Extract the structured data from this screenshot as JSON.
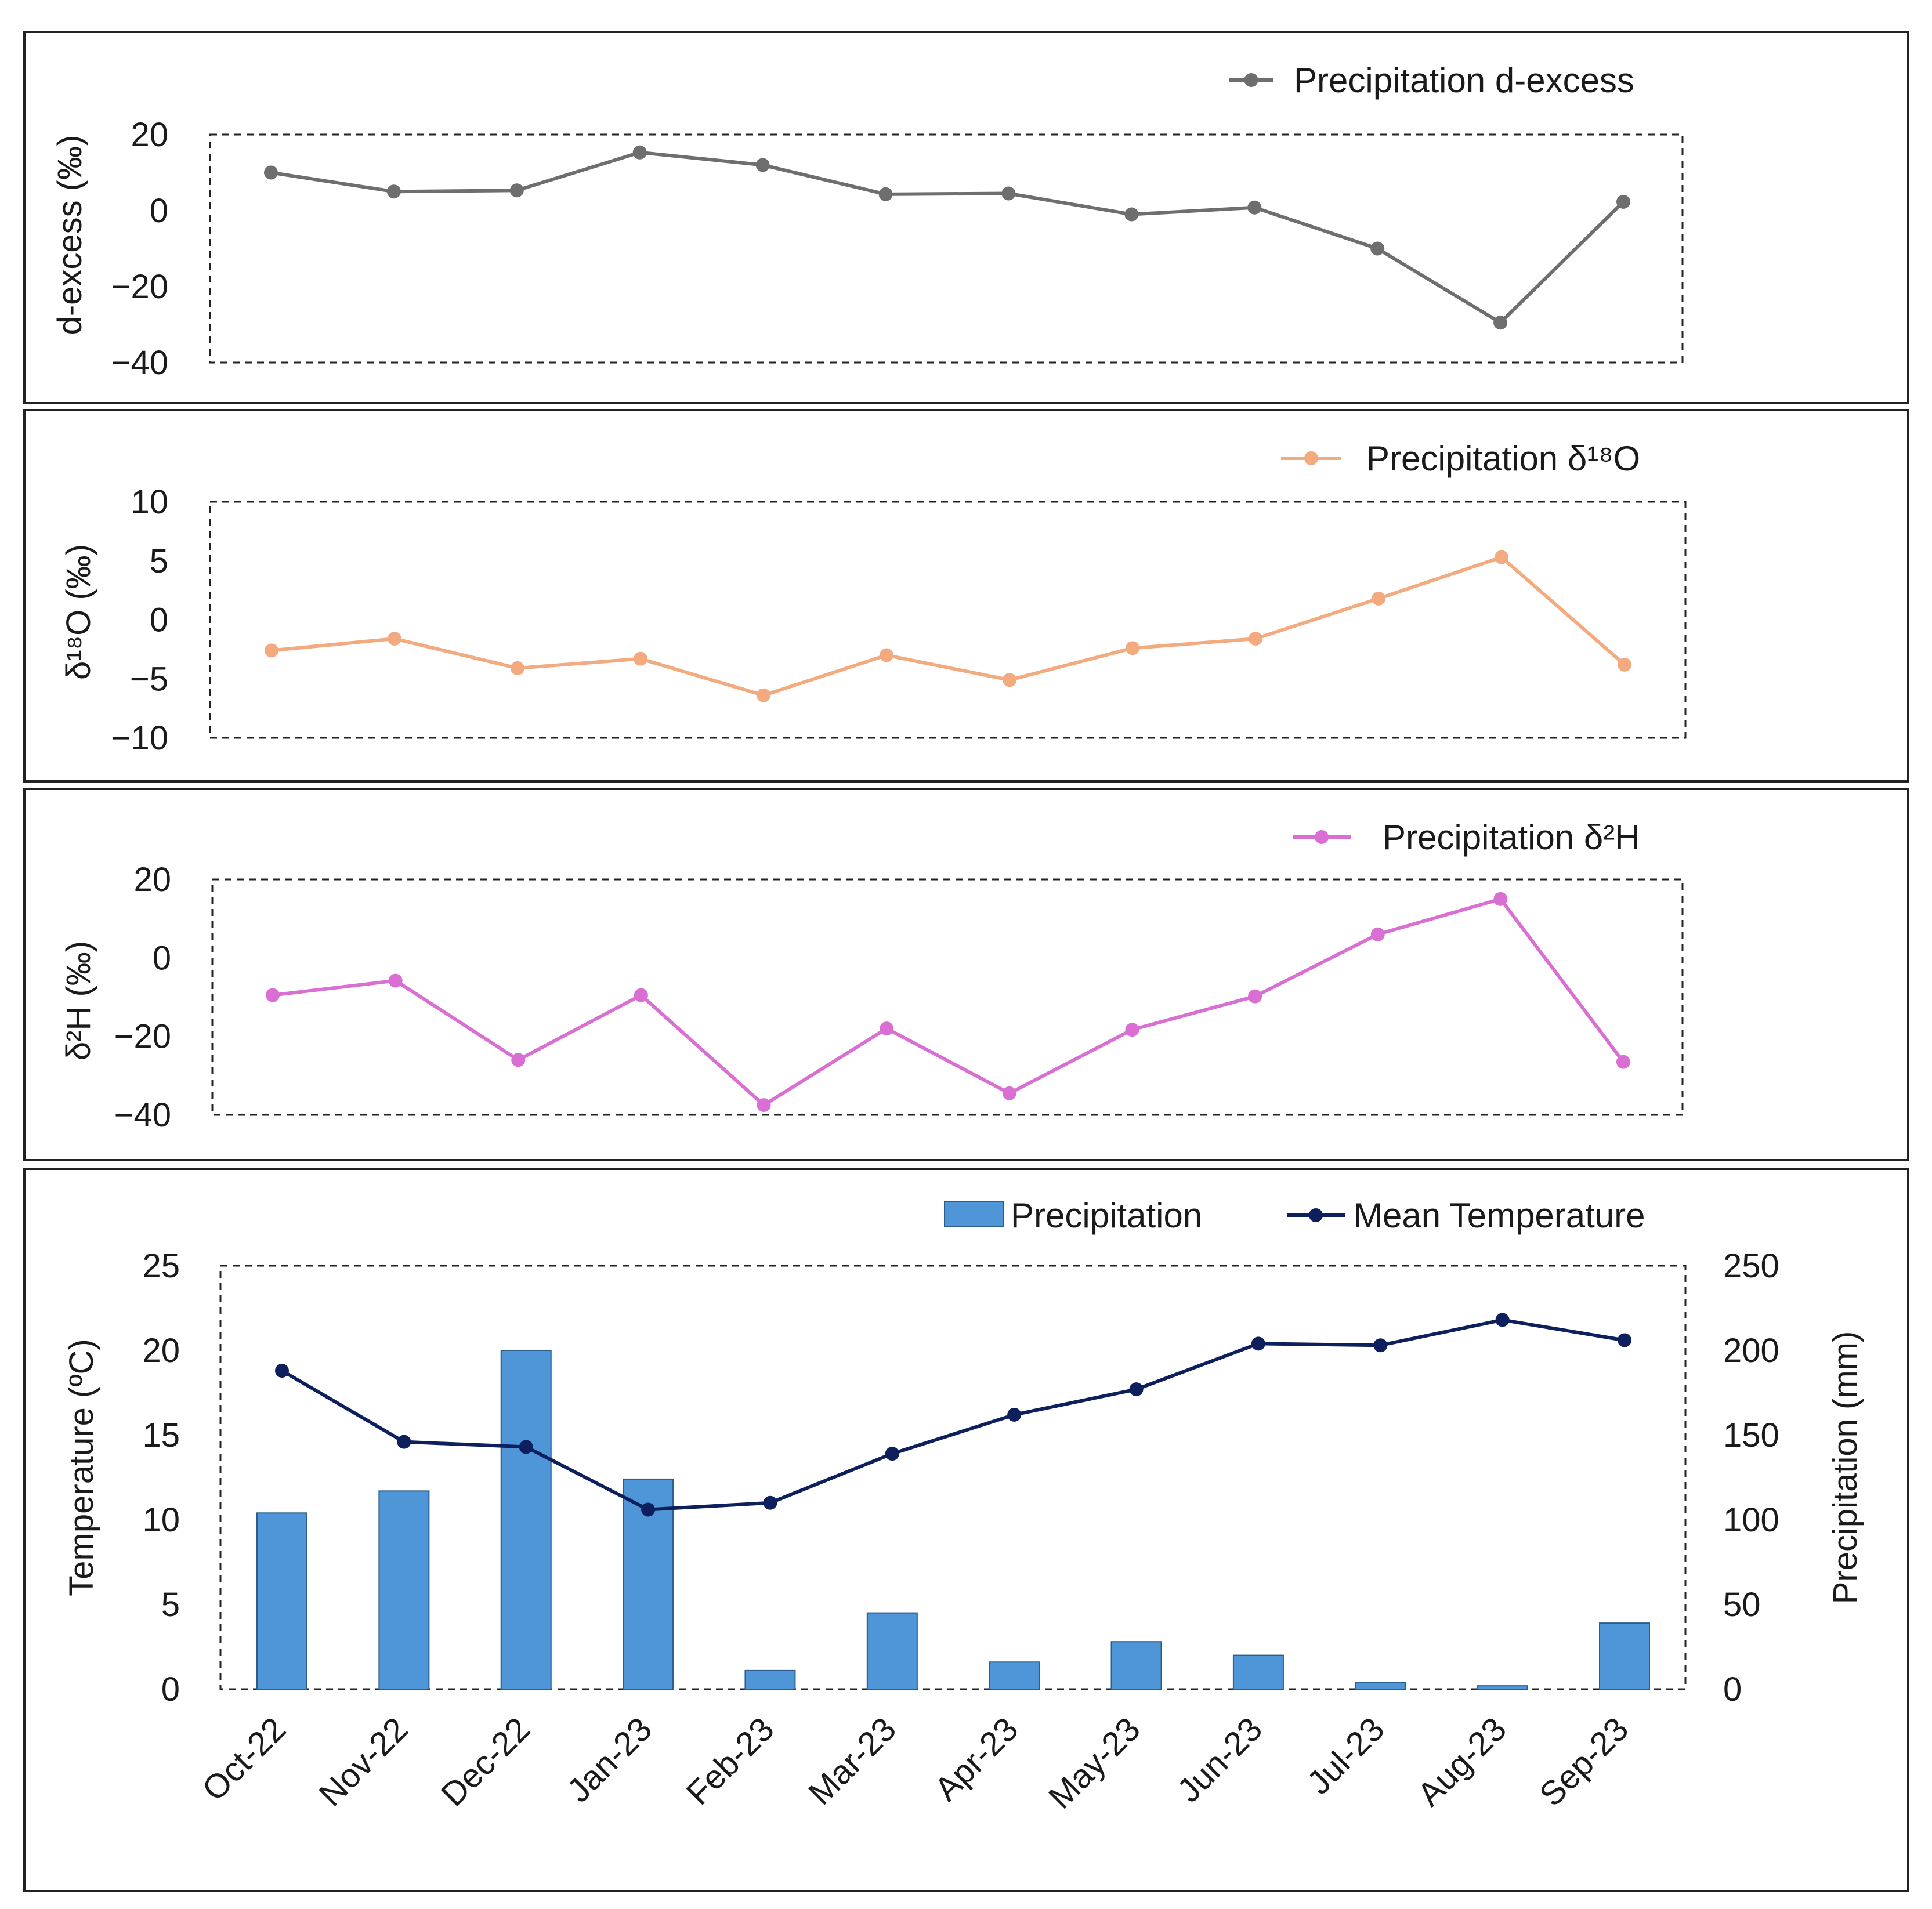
{
  "months": [
    "Oct-22",
    "Nov-22",
    "Dec-22",
    "Jan-23",
    "Feb-23",
    "Mar-23",
    "Apr-23",
    "May-23",
    "Jun-23",
    "Jul-23",
    "Aug-23",
    "Sep-23"
  ],
  "chart_data": [
    {
      "type": "line",
      "title": "",
      "ylabel": "d-excess (‰)",
      "ylim": [
        -40,
        20
      ],
      "yticks": [
        "20",
        "0",
        "−20",
        "−40"
      ],
      "series": [
        {
          "name": "Precipitation d-excess",
          "color": "#6e6e6e",
          "values": [
            10.0,
            5.0,
            5.3,
            15.3,
            12.0,
            4.3,
            4.5,
            -1.0,
            0.8,
            -10.0,
            -29.5,
            2.3
          ]
        }
      ]
    },
    {
      "type": "line",
      "title": "",
      "ylabel": "δ¹⁸O (‰)",
      "ylim": [
        -10,
        10
      ],
      "yticks": [
        "10",
        "5",
        "0",
        "−5",
        "−10"
      ],
      "series": [
        {
          "name": "Precipitation δ¹⁸O",
          "color": "#f2aa7e",
          "values": [
            -2.6,
            -1.6,
            -4.1,
            -3.3,
            -6.4,
            -3.0,
            -5.1,
            -2.4,
            -1.6,
            1.8,
            5.3,
            -3.8
          ]
        }
      ]
    },
    {
      "type": "line",
      "title": "",
      "ylabel": "δ²H (‰)",
      "ylim": [
        -40,
        20
      ],
      "yticks": [
        "20",
        "0",
        "−20",
        "−40"
      ],
      "series": [
        {
          "name": "Precipitation δ²H",
          "color": "#d96fd3",
          "values": [
            -9.5,
            -5.8,
            -26.0,
            -9.5,
            -37.5,
            -18.0,
            -34.5,
            -18.3,
            -9.8,
            6.0,
            15.0,
            -26.5
          ]
        }
      ]
    },
    {
      "type": "bar+line",
      "title": "",
      "ylabel": "Temperature (ºC)",
      "ylabel_right": "Precipitation (mm)",
      "ylim": [
        0,
        25
      ],
      "ylim_right": [
        0,
        250
      ],
      "yticks": [
        "25",
        "20",
        "15",
        "10",
        "5",
        "0"
      ],
      "yticks_right": [
        "250",
        "200",
        "150",
        "100",
        "50",
        "0"
      ],
      "series": [
        {
          "name": "Precipitation",
          "type": "bar",
          "axis": "right",
          "color": "#4f96d8",
          "values": [
            104,
            117,
            200,
            124,
            11,
            45,
            16,
            28,
            20,
            4,
            2,
            39
          ]
        },
        {
          "name": "Mean Temperature",
          "type": "line",
          "axis": "left",
          "color": "#0d1f5c",
          "values": [
            18.8,
            14.6,
            14.3,
            10.6,
            11.0,
            13.9,
            16.2,
            17.7,
            20.4,
            20.3,
            21.8,
            20.6
          ]
        }
      ]
    }
  ]
}
